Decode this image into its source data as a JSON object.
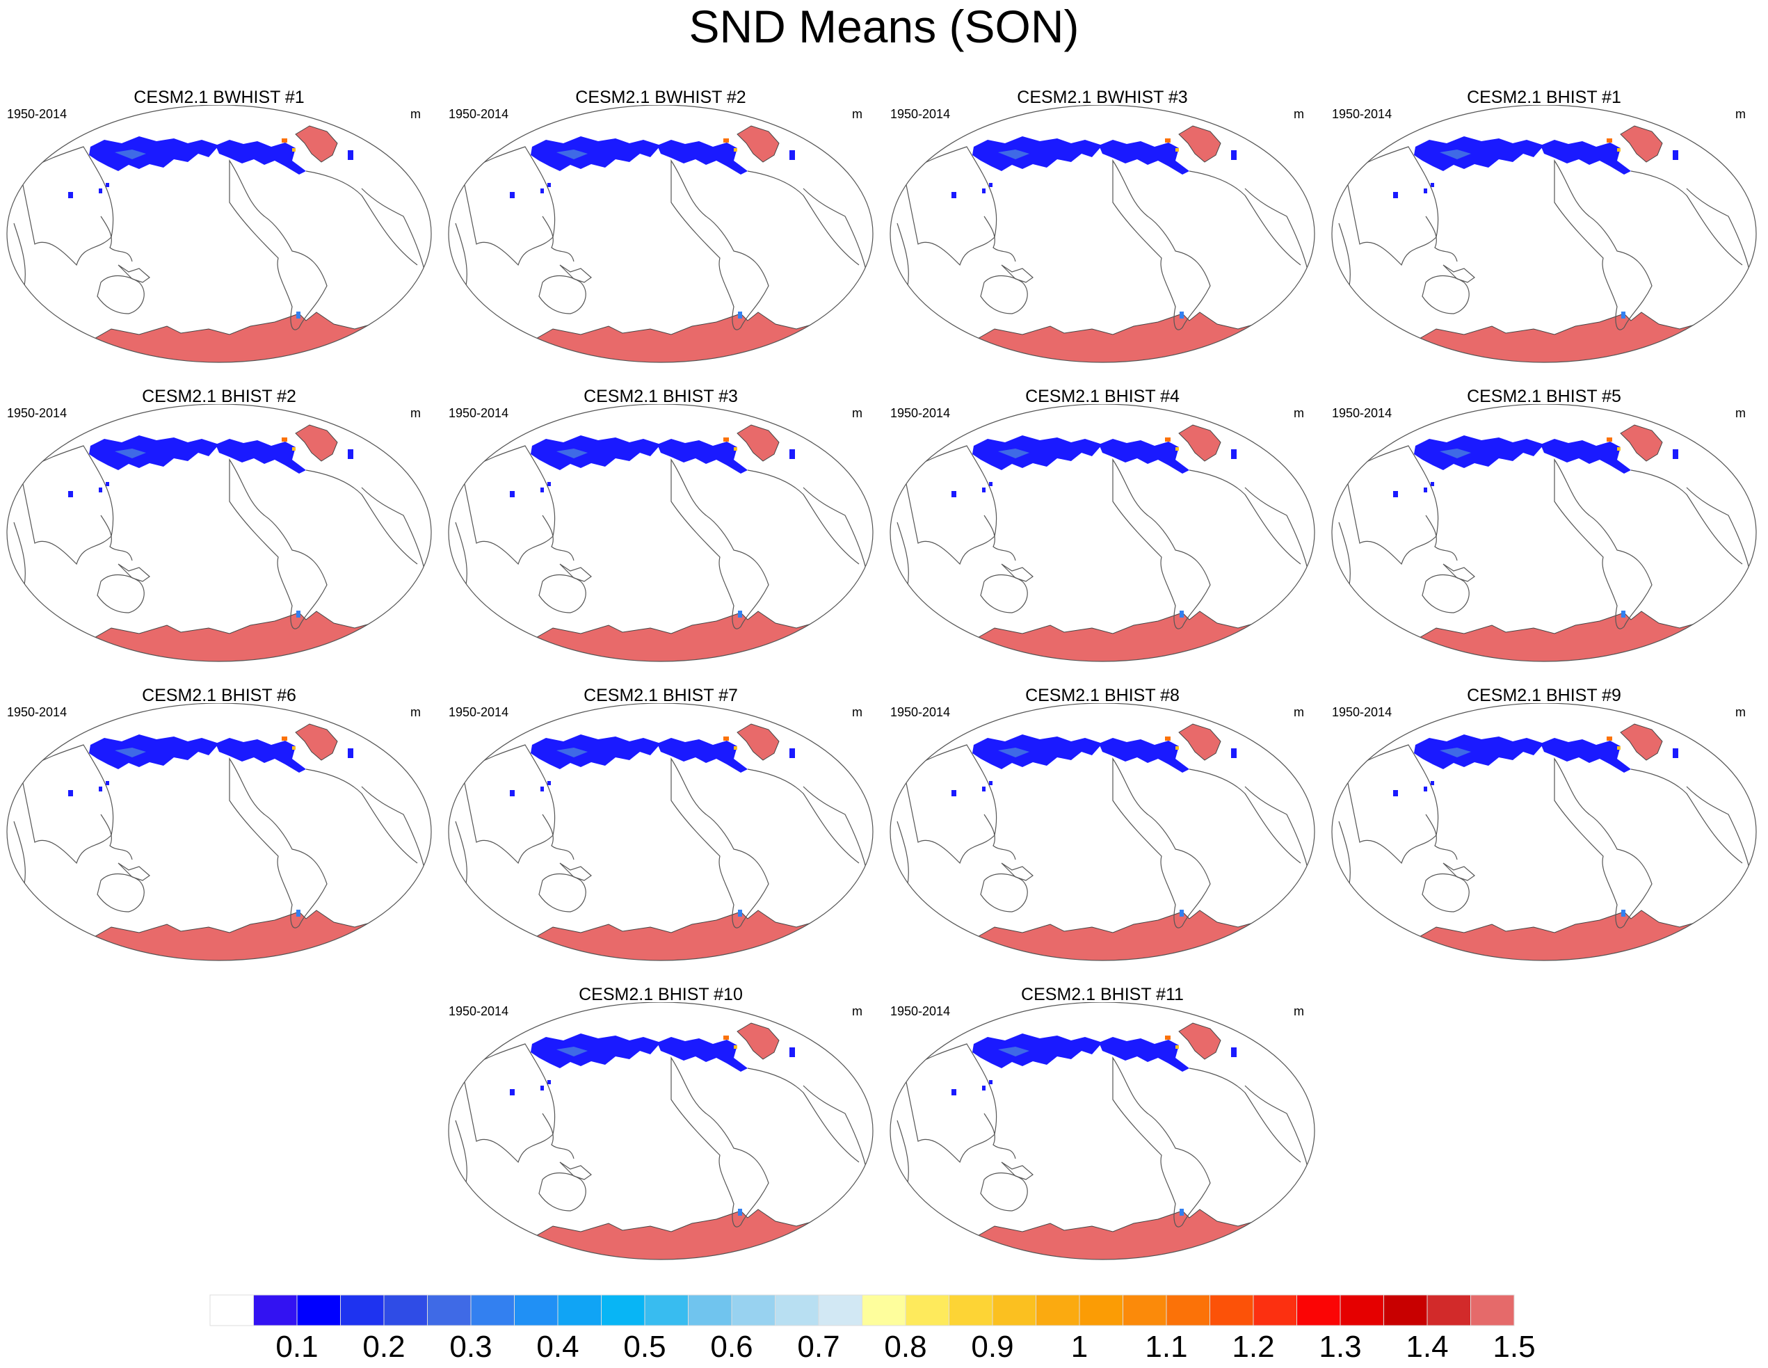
{
  "title": "SND Means (SON)",
  "panels": [
    {
      "title": "CESM2.1 BWHIST #1",
      "left": "1950-2014",
      "right": "m"
    },
    {
      "title": "CESM2.1 BWHIST #2",
      "left": "1950-2014",
      "right": "m"
    },
    {
      "title": "CESM2.1 BWHIST #3",
      "left": "1950-2014",
      "right": "m"
    },
    {
      "title": "CESM2.1 BHIST #1",
      "left": "1950-2014",
      "right": "m"
    },
    {
      "title": "CESM2.1 BHIST #2",
      "left": "1950-2014",
      "right": "m"
    },
    {
      "title": "CESM2.1 BHIST #3",
      "left": "1950-2014",
      "right": "m"
    },
    {
      "title": "CESM2.1 BHIST #4",
      "left": "1950-2014",
      "right": "m"
    },
    {
      "title": "CESM2.1 BHIST #5",
      "left": "1950-2014",
      "right": "m"
    },
    {
      "title": "CESM2.1 BHIST #6",
      "left": "1950-2014",
      "right": "m"
    },
    {
      "title": "CESM2.1 BHIST #7",
      "left": "1950-2014",
      "right": "m"
    },
    {
      "title": "CESM2.1 BHIST #8",
      "left": "1950-2014",
      "right": "m"
    },
    {
      "title": "CESM2.1 BHIST #9",
      "left": "1950-2014",
      "right": "m"
    },
    {
      "title": "CESM2.1 BHIST #10",
      "left": "1950-2014",
      "right": "m"
    },
    {
      "title": "CESM2.1 BHIST #11",
      "left": "1950-2014",
      "right": "m"
    }
  ],
  "colorbar": {
    "colors": [
      "#ffffff",
      "#3312f2",
      "#0000ff",
      "#1e33f0",
      "#2f4ce6",
      "#3f6ae6",
      "#3380f0",
      "#2090f5",
      "#10a4f5",
      "#08b5f5",
      "#38bcf0",
      "#70c4ee",
      "#98d2f0",
      "#b8dff2",
      "#d2e8f4",
      "#fefe9c",
      "#feea5c",
      "#fdd435",
      "#fbc020",
      "#fbaa10",
      "#fb9c05",
      "#fb8a0a",
      "#fb7208",
      "#fc5208",
      "#fc3010",
      "#fb0505",
      "#e50000",
      "#c80000",
      "#d22a2a",
      "#e56a6a"
    ],
    "labels": [
      "0.1",
      "0.2",
      "0.3",
      "0.4",
      "0.5",
      "0.6",
      "0.7",
      "0.8",
      "0.9",
      "1",
      "1.1",
      "1.2",
      "1.3",
      "1.4",
      "1.5"
    ]
  },
  "chart_data": {
    "type": "heatmap",
    "title": "SND Means (SON)",
    "variable": "SND",
    "units": "m",
    "season": "SON",
    "period": "1950-2014",
    "panel_titles": [
      "CESM2.1 BWHIST #1",
      "CESM2.1 BWHIST #2",
      "CESM2.1 BWHIST #3",
      "CESM2.1 BHIST #1",
      "CESM2.1 BHIST #2",
      "CESM2.1 BHIST #3",
      "CESM2.1 BHIST #4",
      "CESM2.1 BHIST #5",
      "CESM2.1 BHIST #6",
      "CESM2.1 BHIST #7",
      "CESM2.1 BHIST #8",
      "CESM2.1 BHIST #9",
      "CESM2.1 BHIST #10",
      "CESM2.1 BHIST #11"
    ],
    "contour_levels": [
      0.05,
      0.1,
      0.15,
      0.2,
      0.25,
      0.3,
      0.35,
      0.4,
      0.45,
      0.5,
      0.55,
      0.6,
      0.65,
      0.7,
      0.75,
      0.8,
      0.85,
      0.9,
      0.95,
      1.0,
      1.05,
      1.1,
      1.15,
      1.2,
      1.25,
      1.3,
      1.35,
      1.4,
      1.45,
      1.5
    ],
    "colorbar_labels": [
      "0.1",
      "0.2",
      "0.3",
      "0.4",
      "0.5",
      "0.6",
      "0.7",
      "0.8",
      "0.9",
      "1",
      "1.1",
      "1.2",
      "1.3",
      "1.4",
      "1.5"
    ]
  }
}
